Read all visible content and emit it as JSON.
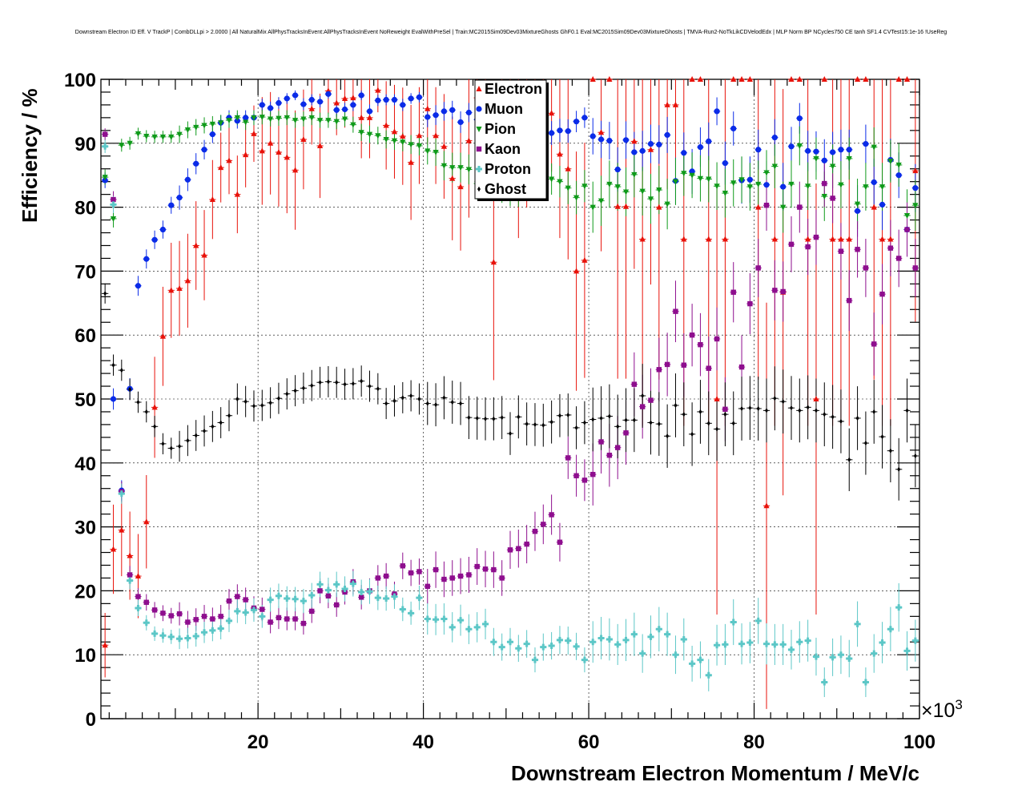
{
  "chart_data": {
    "type": "scatter",
    "title": "Downstream Electron ID Eff. V TrackP | CombDLLpi > 2.0000 | All NaturalMix AllPhysTracksInEvent:AllPhysTracksInEvent NoReweight EvalWithPreSel | Train:MC2015Sim09Dev03MixtureGhosts GhF0.1 Eval:MC2015Sim09Dev03MixtureGhosts | TMVA-Run2-NoTkLikCDVelodEdx | MLP Norm BP NCycles750 CE tanh SF1.4 CVTest15:1e-16 !UseReg",
    "xlabel": "Downstream Electron Momentum / MeV/c",
    "ylabel": "Efficiency / %",
    "x_exponent_label": "×10",
    "x_exponent_power": "3",
    "xlim": [
      1000,
      100000
    ],
    "ylim": [
      0,
      100
    ],
    "x_ticks": [
      20000,
      40000,
      60000,
      80000,
      100000
    ],
    "x_tick_labels": [
      "20",
      "40",
      "60",
      "80",
      "100"
    ],
    "y_ticks": [
      0,
      10,
      20,
      30,
      40,
      50,
      60,
      70,
      80,
      90,
      100
    ],
    "y_tick_labels": [
      "0",
      "10",
      "20",
      "30",
      "40",
      "50",
      "60",
      "70",
      "80",
      "90",
      "100"
    ],
    "grid": true,
    "legend_position": "top-center",
    "x": [
      1500,
      2500,
      3500,
      4500,
      5500,
      6500,
      7500,
      8500,
      9500,
      10500,
      11500,
      12500,
      13500,
      14500,
      15500,
      16500,
      17500,
      18500,
      19500,
      20500,
      21500,
      22500,
      23500,
      24500,
      25500,
      26500,
      27500,
      28500,
      29500,
      30500,
      31500,
      32500,
      33500,
      34500,
      35500,
      36500,
      37500,
      38500,
      39500,
      40500,
      41500,
      42500,
      43500,
      44500,
      45500,
      46500,
      47500,
      48500,
      49500,
      50500,
      51500,
      52500,
      53500,
      54500,
      55500,
      56500,
      57500,
      58500,
      59500,
      60500,
      61500,
      62500,
      63500,
      64500,
      65500,
      66500,
      67500,
      68500,
      69500,
      70500,
      71500,
      72500,
      73500,
      74500,
      75500,
      76500,
      77500,
      78500,
      79500,
      80500,
      81500,
      82500,
      83500,
      84500,
      85500,
      86500,
      87500,
      88500,
      89500,
      90500,
      91500,
      92500,
      93500,
      94500,
      95500,
      96500,
      97500,
      98500,
      99500
    ],
    "series": [
      {
        "name": "Electron",
        "color": "#e8120a",
        "marker": "triangle-up",
        "values": [
          11.5,
          26.5,
          29.5,
          25.5,
          22.3,
          30.8,
          48.7,
          59.8,
          67.0,
          67.3,
          68.5,
          74.0,
          72.5,
          81.2,
          86.2,
          87.3,
          82.0,
          88.2,
          91.5,
          88.8,
          90.0,
          88.6,
          87.8,
          85.8,
          90.6,
          95.4,
          89.6,
          98.2,
          96.3,
          97.0,
          97.1,
          94.0,
          94.0,
          98.3,
          92.8,
          91.8,
          91.1,
          87.0,
          91.2,
          95.4,
          91.2,
          89.5,
          84.5,
          83.2,
          90.4,
          97.1,
          93.4,
          71.4,
          96.2,
          97.6,
          88.3,
          91.4,
          96.0,
          95.9,
          94.7,
          88.3,
          86.0,
          70.0,
          71.7,
          100,
          91.7,
          100,
          80.1,
          80.1,
          90.3,
          75.0,
          89.0,
          80.0,
          96.0,
          96.0,
          75.0,
          100,
          100,
          75.0,
          50.0,
          75.0,
          100,
          100,
          100,
          80.0,
          33.3,
          75.0,
          66.7,
          100,
          100,
          75.0,
          50.0,
          100,
          75.0,
          75.0,
          75.0,
          100,
          100,
          80.0,
          75.0,
          75.0,
          100,
          100,
          85.7
        ]
      },
      {
        "name": "Muon",
        "color": "#0a2be8",
        "marker": "circle",
        "values": [
          84.2,
          50.0,
          35.7,
          51.6,
          67.7,
          71.9,
          74.9,
          76.5,
          80.3,
          81.5,
          84.3,
          86.8,
          89.0,
          91.4,
          93.2,
          94.0,
          93.5,
          94.0,
          94.0,
          96.0,
          95.5,
          96.3,
          97.0,
          97.5,
          96.1,
          96.8,
          96.5,
          97.7,
          95.2,
          95.3,
          96.0,
          97.5,
          95.0,
          96.7,
          96.8,
          96.8,
          96.0,
          97.0,
          97.2,
          94.1,
          94.4,
          95.0,
          95.2,
          93.3,
          94.8,
          93.7,
          89.4,
          93.0,
          92.0,
          95.7,
          93.0,
          95.7,
          96.0,
          92.4,
          91.6,
          92.0,
          91.9,
          93.4,
          94.0,
          91.1,
          90.6,
          90.4,
          85.9,
          90.5,
          88.6,
          88.8,
          89.9,
          89.8,
          91.3,
          84.1,
          88.5,
          85.6,
          89.4,
          90.3,
          95.0,
          86.9,
          92.3,
          84.2,
          84.3,
          89.0,
          83.5,
          90.9,
          83.2,
          89.5,
          93.9,
          88.8,
          88.7,
          87.3,
          88.6,
          89.0,
          89.0,
          79.4,
          89.9,
          83.9,
          80.4,
          87.4,
          85.0,
          76.5,
          83.0
        ]
      },
      {
        "name": "Pion",
        "color": "#0f9a1a",
        "marker": "triangle-down",
        "values": [
          84.7,
          78.2,
          89.7,
          90.0,
          91.5,
          91.1,
          91.0,
          91.0,
          91.0,
          91.4,
          92.1,
          92.5,
          92.8,
          93.0,
          93.2,
          93.6,
          94.0,
          93.3,
          94.0,
          94.1,
          93.8,
          93.9,
          94.0,
          93.6,
          93.8,
          94.0,
          93.6,
          93.6,
          93.4,
          93.8,
          92.9,
          91.7,
          91.4,
          91.2,
          90.6,
          90.4,
          90.2,
          89.8,
          89.6,
          88.8,
          88.6,
          86.5,
          86.2,
          86.2,
          85.9,
          83.7,
          84.7,
          84.5,
          83.2,
          82.7,
          82.6,
          84.1,
          83.6,
          84.1,
          84.4,
          84.0,
          83.0,
          81.5,
          83.3,
          80.0,
          81.0,
          83.6,
          83.2,
          82.4,
          85.1,
          82.5,
          81.3,
          82.7,
          80.5,
          84.0,
          85.3,
          85.0,
          84.5,
          84.4,
          83.3,
          82.2,
          83.8,
          84.3,
          83.2,
          83.6,
          85.4,
          86.4,
          80.0,
          83.6,
          89.6,
          83.3,
          87.6,
          81.7,
          86.4,
          83.5,
          87.6,
          80.5,
          83.2,
          89.4,
          83.2,
          87.2,
          86.6,
          78.7,
          80.3
        ]
      },
      {
        "name": "Kaon",
        "color": "#8e0e8e",
        "marker": "square",
        "values": [
          91.4,
          81.2,
          35.5,
          22.5,
          19.1,
          18.2,
          17.0,
          16.5,
          16.1,
          16.4,
          15.1,
          15.5,
          16.0,
          15.6,
          16.0,
          18.4,
          19.1,
          18.6,
          17.3,
          17.1,
          15.1,
          15.8,
          15.6,
          15.6,
          14.9,
          16.8,
          20.0,
          19.2,
          17.8,
          19.8,
          21.4,
          19.0,
          20.0,
          22.0,
          22.3,
          19.5,
          23.9,
          22.8,
          23.0,
          20.7,
          23.3,
          21.8,
          22.0,
          22.3,
          22.5,
          23.8,
          23.4,
          23.3,
          22.0,
          26.4,
          26.6,
          27.3,
          29.3,
          30.4,
          31.9,
          27.6,
          40.8,
          38.0,
          37.3,
          38.2,
          43.3,
          41.2,
          42.4,
          44.7,
          52.3,
          48.8,
          49.8,
          54.6,
          55.4,
          63.7,
          55.3,
          60.0,
          58.5,
          54.8,
          59.4,
          48.4,
          66.7,
          55.0,
          64.9,
          70.5,
          80.3,
          67.0,
          66.8,
          74.2,
          80.0,
          73.8,
          75.3,
          83.7,
          81.4,
          73.1,
          65.4,
          73.4,
          70.5,
          58.6,
          66.4,
          73.6,
          72.0,
          76.5,
          70.5
        ]
      },
      {
        "name": "Proton",
        "color": "#5cc7c7",
        "marker": "cross",
        "values": [
          89.5,
          80.4,
          35.2,
          21.6,
          17.3,
          15.0,
          13.3,
          13.0,
          12.8,
          12.5,
          12.6,
          12.9,
          13.5,
          13.8,
          14.1,
          15.3,
          16.8,
          16.6,
          17.0,
          16.0,
          18.6,
          19.2,
          18.8,
          18.7,
          18.4,
          19.3,
          21.0,
          20.1,
          21.0,
          20.3,
          21.1,
          19.8,
          19.9,
          18.9,
          18.8,
          19.1,
          17.1,
          16.5,
          18.9,
          15.6,
          15.5,
          15.6,
          14.3,
          15.4,
          14.0,
          14.3,
          14.8,
          12.0,
          11.2,
          12.0,
          11.0,
          11.7,
          9.2,
          11.2,
          11.4,
          12.3,
          12.2,
          11.3,
          9.2,
          12.0,
          12.6,
          12.4,
          11.6,
          12.3,
          13.2,
          10.2,
          12.8,
          14.0,
          13.2,
          10.0,
          12.4,
          8.6,
          9.2,
          6.8,
          11.5,
          11.6,
          15.1,
          11.7,
          11.9,
          15.3,
          11.7,
          11.6,
          11.6,
          10.8,
          12.0,
          12.2,
          9.7,
          5.7,
          9.6,
          10.0,
          9.4,
          14.8,
          5.7,
          10.2,
          11.9,
          14.0,
          17.4,
          10.6,
          12.2
        ]
      },
      {
        "name": "Ghost",
        "color": "#000000",
        "marker": "diamond",
        "values": [
          66.5,
          55.3,
          54.5,
          51.5,
          49.5,
          48.0,
          45.7,
          43.0,
          42.3,
          42.6,
          43.5,
          44.3,
          45.0,
          45.7,
          46.3,
          47.4,
          50.0,
          49.6,
          48.9,
          49.0,
          49.4,
          50.1,
          50.8,
          51.3,
          51.7,
          52.1,
          52.6,
          52.7,
          52.6,
          52.3,
          52.4,
          52.8,
          52.0,
          51.6,
          49.3,
          49.7,
          50.2,
          50.5,
          50.0,
          49.3,
          49.1,
          50.2,
          49.5,
          49.3,
          47.1,
          47.0,
          46.9,
          46.9,
          47.1,
          44.6,
          47.2,
          46.1,
          46.0,
          45.9,
          46.4,
          47.4,
          47.5,
          45.5,
          46.3,
          46.8,
          47.0,
          47.3,
          45.7,
          46.7,
          46.7,
          50.5,
          46.3,
          46.1,
          44.2,
          49.0,
          47.6,
          44.5,
          48.0,
          46.2,
          45.3,
          47.6,
          46.2,
          48.5,
          48.6,
          48.5,
          48.2,
          50.1,
          49.6,
          48.6,
          48.2,
          48.7,
          48.2,
          47.6,
          47.2,
          46.5,
          40.5,
          47.0,
          43.1,
          48.0,
          44.1,
          41.9,
          39.0,
          48.2,
          41.1
        ]
      }
    ]
  }
}
